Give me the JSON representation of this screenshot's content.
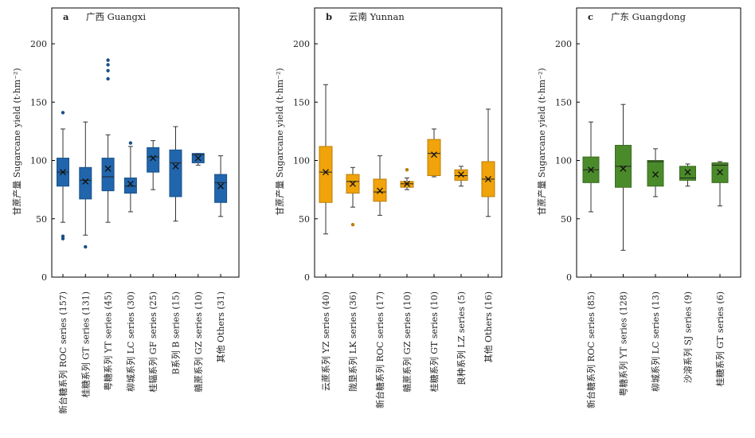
{
  "chart_data": [
    {
      "type": "box",
      "panel_letter": "a",
      "title": "广西 Guangxi",
      "ylabel": "甘蔗产量 Sugarcane yield (t·hm⁻²)",
      "ylim": [
        0,
        230
      ],
      "yticks": [
        0,
        50,
        100,
        150,
        200
      ],
      "color": "#2166ac",
      "categories": [
        "新台糖系列 ROC series (157)",
        "桂糖系列 GT series (131)",
        "粤糖系列 YT series (45)",
        "柳城系列 LC series (30)",
        "桂辐系列 GF series (25)",
        "B系列 B series (15)",
        "赣蔗系列 GZ series (10)",
        "其他 Others (31)"
      ],
      "boxes": [
        {
          "min": 47,
          "q1": 78,
          "median": 90,
          "mean": 90,
          "q3": 102,
          "max": 127,
          "outliers": [
            141,
            35,
            33
          ]
        },
        {
          "min": 36,
          "q1": 67,
          "median": 83,
          "mean": 82,
          "q3": 94,
          "max": 133,
          "outliers": [
            26
          ]
        },
        {
          "min": 47,
          "q1": 74,
          "median": 86,
          "mean": 93,
          "q3": 102,
          "max": 122,
          "outliers": [
            186,
            182,
            177,
            170
          ]
        },
        {
          "min": 56,
          "q1": 72,
          "median": 78,
          "mean": 80,
          "q3": 85,
          "max": 112,
          "outliers": [
            115
          ]
        },
        {
          "min": 75,
          "q1": 90,
          "median": 103,
          "mean": 102,
          "q3": 111,
          "max": 117,
          "outliers": []
        },
        {
          "min": 48,
          "q1": 69,
          "median": 98,
          "mean": 95,
          "q3": 109,
          "max": 129,
          "outliers": []
        },
        {
          "min": 96,
          "q1": 98,
          "median": 105,
          "mean": 102,
          "q3": 106,
          "max": 106,
          "outliers": []
        },
        {
          "min": 52,
          "q1": 64,
          "median": 81,
          "mean": 78,
          "q3": 88,
          "max": 104,
          "outliers": []
        }
      ]
    },
    {
      "type": "box",
      "panel_letter": "b",
      "title": "云南 Yunnan",
      "ylabel": "甘蔗产量 Sugarcane yield (t·hm⁻²)",
      "ylim": [
        0,
        230
      ],
      "yticks": [
        0,
        50,
        100,
        150,
        200
      ],
      "color": "#f0a30a",
      "categories": [
        "云蔗系列 YZ series (40)",
        "陇垦系列 LK series (36)",
        "新台糖系列 ROC series (17)",
        "赣蔗系列 GZ series (10)",
        "桂糖系列 GT series (10)",
        "良种系列 LZ series (5)",
        "其他 Others (16)"
      ],
      "boxes": [
        {
          "min": 37,
          "q1": 64,
          "median": 90,
          "mean": 90,
          "q3": 112,
          "max": 165,
          "outliers": []
        },
        {
          "min": 60,
          "q1": 72,
          "median": 82,
          "mean": 80,
          "q3": 88,
          "max": 94,
          "outliers": [
            45
          ]
        },
        {
          "min": 53,
          "q1": 65,
          "median": 73,
          "mean": 74,
          "q3": 84,
          "max": 104,
          "outliers": []
        },
        {
          "min": 75,
          "q1": 77,
          "median": 80,
          "mean": 80,
          "q3": 82,
          "max": 85,
          "outliers": [
            92
          ]
        },
        {
          "min": 86,
          "q1": 87,
          "median": 106,
          "mean": 105,
          "q3": 118,
          "max": 127,
          "outliers": []
        },
        {
          "min": 78,
          "q1": 83,
          "median": 87,
          "mean": 88,
          "q3": 92,
          "max": 95,
          "outliers": []
        },
        {
          "min": 52,
          "q1": 69,
          "median": 84,
          "mean": 84,
          "q3": 99,
          "max": 144,
          "outliers": []
        }
      ]
    },
    {
      "type": "box",
      "panel_letter": "c",
      "title": "广东 Guangdong",
      "ylabel": "甘蔗产量 Sugarcane yield (t·hm⁻²)",
      "ylim": [
        0,
        230
      ],
      "yticks": [
        0,
        50,
        100,
        150,
        200
      ],
      "color": "#4a8a2a",
      "categories": [
        "新台糖系列 ROC series (85)",
        "粤糖系列 YT series (128)",
        "柳城系列 LC series (13)",
        "沙溶系列 SJ series (9)",
        "桂糖系列 GT series (6)"
      ],
      "boxes": [
        {
          "min": 56,
          "q1": 81,
          "median": 92,
          "mean": 92,
          "q3": 103,
          "max": 133,
          "outliers": []
        },
        {
          "min": 23,
          "q1": 77,
          "median": 95,
          "mean": 93,
          "q3": 113,
          "max": 148,
          "outliers": []
        },
        {
          "min": 69,
          "q1": 78,
          "median": 99,
          "mean": 88,
          "q3": 100,
          "max": 110,
          "outliers": []
        },
        {
          "min": 78,
          "q1": 83,
          "median": 85,
          "mean": 90,
          "q3": 95,
          "max": 97,
          "outliers": []
        },
        {
          "min": 61,
          "q1": 81,
          "median": 96,
          "mean": 90,
          "q3": 98,
          "max": 99,
          "outliers": []
        }
      ]
    }
  ]
}
